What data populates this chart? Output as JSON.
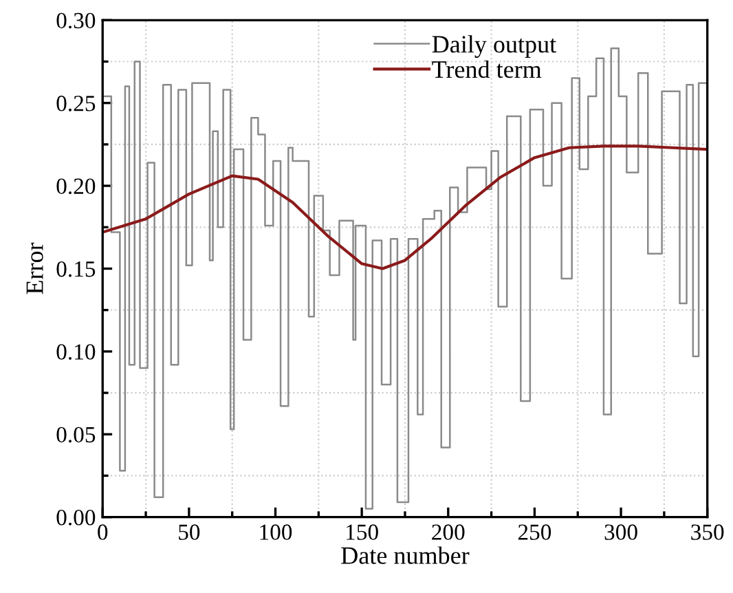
{
  "chart_data": {
    "type": "line",
    "xlabel": "Date number",
    "ylabel": "Error",
    "xlim": [
      0,
      350
    ],
    "xticks": [
      0,
      50,
      100,
      150,
      200,
      250,
      300,
      350
    ],
    "ylim": [
      0,
      0.3
    ],
    "yticks": [
      {
        "value": 0,
        "label": "0.00"
      },
      {
        "value": 0.05,
        "label": "0.05"
      },
      {
        "value": 0.1,
        "label": "0.10"
      },
      {
        "value": 0.15,
        "label": "0.15"
      },
      {
        "value": 0.2,
        "label": "0.20"
      },
      {
        "value": 0.25,
        "label": "0.25"
      },
      {
        "value": 0.3,
        "label": "0.30"
      }
    ],
    "grid": true,
    "legend": "top",
    "marker": "none",
    "line_style": "solid",
    "series": [
      {
        "name": "Daily output",
        "type": "step",
        "color": "#8a8a8a",
        "x": [
          0,
          5,
          10,
          13,
          15.4,
          18.5,
          21.6,
          26,
          30,
          35,
          39.6,
          43.8,
          48.4,
          51.8,
          62,
          63.8,
          66.7,
          69.8,
          74,
          76,
          81.5,
          86,
          90,
          94,
          98.7,
          103,
          107.5,
          110,
          119.3,
          122.4,
          127.6,
          131.5,
          137,
          145,
          146.4,
          152.3,
          156.2,
          161.5,
          166.7,
          170.6,
          177,
          182.3,
          185.4,
          192,
          196,
          201,
          205.7,
          211,
          217,
          222,
          225,
          229,
          234,
          242,
          247.4,
          255,
          260,
          265.6,
          271.6,
          276,
          281,
          285.7,
          290,
          294.3,
          298.7,
          303.3,
          310,
          315.6,
          323.7,
          334,
          338,
          341.7,
          345,
          350
        ],
        "values": [
          0.254,
          0.172,
          0.028,
          0.26,
          0.092,
          0.275,
          0.09,
          0.214,
          0.012,
          0.261,
          0.092,
          0.258,
          0.152,
          0.262,
          0.155,
          0.233,
          0.175,
          0.258,
          0.053,
          0.222,
          0.107,
          0.241,
          0.231,
          0.176,
          0.215,
          0.067,
          0.223,
          0.215,
          0.121,
          0.194,
          0.173,
          0.146,
          0.179,
          0.107,
          0.176,
          0.005,
          0.167,
          0.08,
          0.168,
          0.009,
          0.168,
          0.062,
          0.18,
          0.185,
          0.042,
          0.199,
          0.184,
          0.211,
          0.211,
          0.198,
          0.221,
          0.127,
          0.242,
          0.07,
          0.246,
          0.2,
          0.25,
          0.144,
          0.265,
          0.21,
          0.254,
          0.277,
          0.062,
          0.283,
          0.254,
          0.208,
          0.268,
          0.159,
          0.257,
          0.129,
          0.261,
          0.097,
          0.262,
          0.262
        ]
      },
      {
        "name": "Trend term",
        "color": "#8b1a1a",
        "x": [
          0,
          25,
          50,
          75,
          90,
          110,
          130,
          150,
          162,
          175,
          190,
          210,
          230,
          250,
          270,
          290,
          310,
          330,
          350
        ],
        "values": [
          0.172,
          0.18,
          0.195,
          0.206,
          0.204,
          0.19,
          0.17,
          0.153,
          0.15,
          0.155,
          0.168,
          0.188,
          0.205,
          0.217,
          0.223,
          0.224,
          0.224,
          0.223,
          0.222
        ]
      }
    ]
  }
}
